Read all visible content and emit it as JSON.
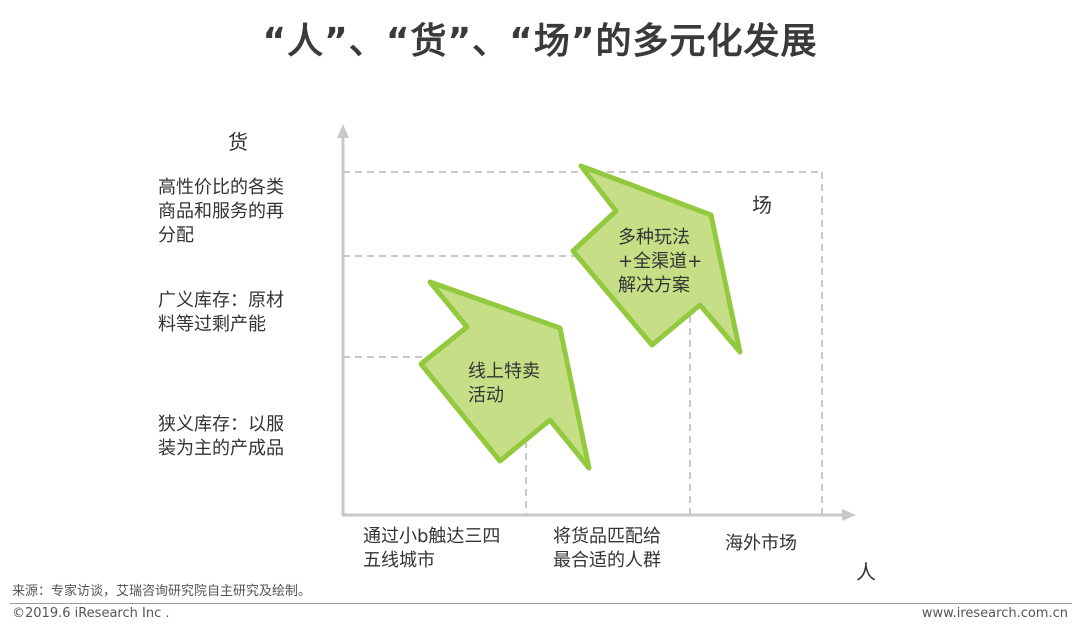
{
  "title": "“人”、“货”、“场”的多元化发展",
  "y_axis": {
    "name": "货",
    "levels": [
      "高性价比的各类\n商品和服务的再\n分配",
      "广义库存：原材\n料等过剩产能",
      "狭义库存：以服\n装为主的产成品"
    ]
  },
  "x_axis": {
    "name": "人",
    "levels": [
      "通过小b触达三四\n五线城市",
      "将货品匹配给\n最合适的人群",
      "海外市场"
    ]
  },
  "field_label": "场",
  "arrows": [
    {
      "text": "线上特卖\n活动"
    },
    {
      "text": "多种玩法\n+全渠道+\n解决方案"
    }
  ],
  "colors": {
    "arrow_fill": "#c6df86",
    "arrow_stroke": "#93c93e",
    "axis": "#c8c8c8",
    "grid": "#c8c8c8"
  },
  "source": "来源：专家访谈，艾瑞咨询研究院自主研究及绘制。",
  "copyright": "©2019.6 iResearch Inc .",
  "website": "www.iresearch.com.cn"
}
